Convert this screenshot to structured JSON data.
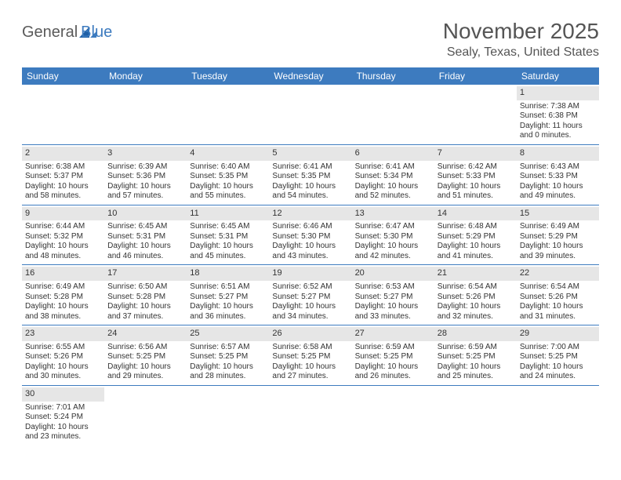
{
  "logo": {
    "text_general": "General",
    "text_blue": "Blue",
    "icon_color": "#1f5fa6"
  },
  "title": "November 2025",
  "location": "Sealy, Texas, United States",
  "colors": {
    "header_bg": "#3d7bbf",
    "header_text": "#ffffff",
    "daynum_bg": "#e6e6e6",
    "row_border": "#3d7bbf",
    "body_text": "#333333"
  },
  "weekdays": [
    "Sunday",
    "Monday",
    "Tuesday",
    "Wednesday",
    "Thursday",
    "Friday",
    "Saturday"
  ],
  "weeks": [
    [
      null,
      null,
      null,
      null,
      null,
      null,
      {
        "n": "1",
        "sr": "Sunrise: 7:38 AM",
        "ss": "Sunset: 6:38 PM",
        "dl": "Daylight: 11 hours and 0 minutes."
      }
    ],
    [
      {
        "n": "2",
        "sr": "Sunrise: 6:38 AM",
        "ss": "Sunset: 5:37 PM",
        "dl": "Daylight: 10 hours and 58 minutes."
      },
      {
        "n": "3",
        "sr": "Sunrise: 6:39 AM",
        "ss": "Sunset: 5:36 PM",
        "dl": "Daylight: 10 hours and 57 minutes."
      },
      {
        "n": "4",
        "sr": "Sunrise: 6:40 AM",
        "ss": "Sunset: 5:35 PM",
        "dl": "Daylight: 10 hours and 55 minutes."
      },
      {
        "n": "5",
        "sr": "Sunrise: 6:41 AM",
        "ss": "Sunset: 5:35 PM",
        "dl": "Daylight: 10 hours and 54 minutes."
      },
      {
        "n": "6",
        "sr": "Sunrise: 6:41 AM",
        "ss": "Sunset: 5:34 PM",
        "dl": "Daylight: 10 hours and 52 minutes."
      },
      {
        "n": "7",
        "sr": "Sunrise: 6:42 AM",
        "ss": "Sunset: 5:33 PM",
        "dl": "Daylight: 10 hours and 51 minutes."
      },
      {
        "n": "8",
        "sr": "Sunrise: 6:43 AM",
        "ss": "Sunset: 5:33 PM",
        "dl": "Daylight: 10 hours and 49 minutes."
      }
    ],
    [
      {
        "n": "9",
        "sr": "Sunrise: 6:44 AM",
        "ss": "Sunset: 5:32 PM",
        "dl": "Daylight: 10 hours and 48 minutes."
      },
      {
        "n": "10",
        "sr": "Sunrise: 6:45 AM",
        "ss": "Sunset: 5:31 PM",
        "dl": "Daylight: 10 hours and 46 minutes."
      },
      {
        "n": "11",
        "sr": "Sunrise: 6:45 AM",
        "ss": "Sunset: 5:31 PM",
        "dl": "Daylight: 10 hours and 45 minutes."
      },
      {
        "n": "12",
        "sr": "Sunrise: 6:46 AM",
        "ss": "Sunset: 5:30 PM",
        "dl": "Daylight: 10 hours and 43 minutes."
      },
      {
        "n": "13",
        "sr": "Sunrise: 6:47 AM",
        "ss": "Sunset: 5:30 PM",
        "dl": "Daylight: 10 hours and 42 minutes."
      },
      {
        "n": "14",
        "sr": "Sunrise: 6:48 AM",
        "ss": "Sunset: 5:29 PM",
        "dl": "Daylight: 10 hours and 41 minutes."
      },
      {
        "n": "15",
        "sr": "Sunrise: 6:49 AM",
        "ss": "Sunset: 5:29 PM",
        "dl": "Daylight: 10 hours and 39 minutes."
      }
    ],
    [
      {
        "n": "16",
        "sr": "Sunrise: 6:49 AM",
        "ss": "Sunset: 5:28 PM",
        "dl": "Daylight: 10 hours and 38 minutes."
      },
      {
        "n": "17",
        "sr": "Sunrise: 6:50 AM",
        "ss": "Sunset: 5:28 PM",
        "dl": "Daylight: 10 hours and 37 minutes."
      },
      {
        "n": "18",
        "sr": "Sunrise: 6:51 AM",
        "ss": "Sunset: 5:27 PM",
        "dl": "Daylight: 10 hours and 36 minutes."
      },
      {
        "n": "19",
        "sr": "Sunrise: 6:52 AM",
        "ss": "Sunset: 5:27 PM",
        "dl": "Daylight: 10 hours and 34 minutes."
      },
      {
        "n": "20",
        "sr": "Sunrise: 6:53 AM",
        "ss": "Sunset: 5:27 PM",
        "dl": "Daylight: 10 hours and 33 minutes."
      },
      {
        "n": "21",
        "sr": "Sunrise: 6:54 AM",
        "ss": "Sunset: 5:26 PM",
        "dl": "Daylight: 10 hours and 32 minutes."
      },
      {
        "n": "22",
        "sr": "Sunrise: 6:54 AM",
        "ss": "Sunset: 5:26 PM",
        "dl": "Daylight: 10 hours and 31 minutes."
      }
    ],
    [
      {
        "n": "23",
        "sr": "Sunrise: 6:55 AM",
        "ss": "Sunset: 5:26 PM",
        "dl": "Daylight: 10 hours and 30 minutes."
      },
      {
        "n": "24",
        "sr": "Sunrise: 6:56 AM",
        "ss": "Sunset: 5:25 PM",
        "dl": "Daylight: 10 hours and 29 minutes."
      },
      {
        "n": "25",
        "sr": "Sunrise: 6:57 AM",
        "ss": "Sunset: 5:25 PM",
        "dl": "Daylight: 10 hours and 28 minutes."
      },
      {
        "n": "26",
        "sr": "Sunrise: 6:58 AM",
        "ss": "Sunset: 5:25 PM",
        "dl": "Daylight: 10 hours and 27 minutes."
      },
      {
        "n": "27",
        "sr": "Sunrise: 6:59 AM",
        "ss": "Sunset: 5:25 PM",
        "dl": "Daylight: 10 hours and 26 minutes."
      },
      {
        "n": "28",
        "sr": "Sunrise: 6:59 AM",
        "ss": "Sunset: 5:25 PM",
        "dl": "Daylight: 10 hours and 25 minutes."
      },
      {
        "n": "29",
        "sr": "Sunrise: 7:00 AM",
        "ss": "Sunset: 5:25 PM",
        "dl": "Daylight: 10 hours and 24 minutes."
      }
    ],
    [
      {
        "n": "30",
        "sr": "Sunrise: 7:01 AM",
        "ss": "Sunset: 5:24 PM",
        "dl": "Daylight: 10 hours and 23 minutes."
      },
      null,
      null,
      null,
      null,
      null,
      null
    ]
  ]
}
